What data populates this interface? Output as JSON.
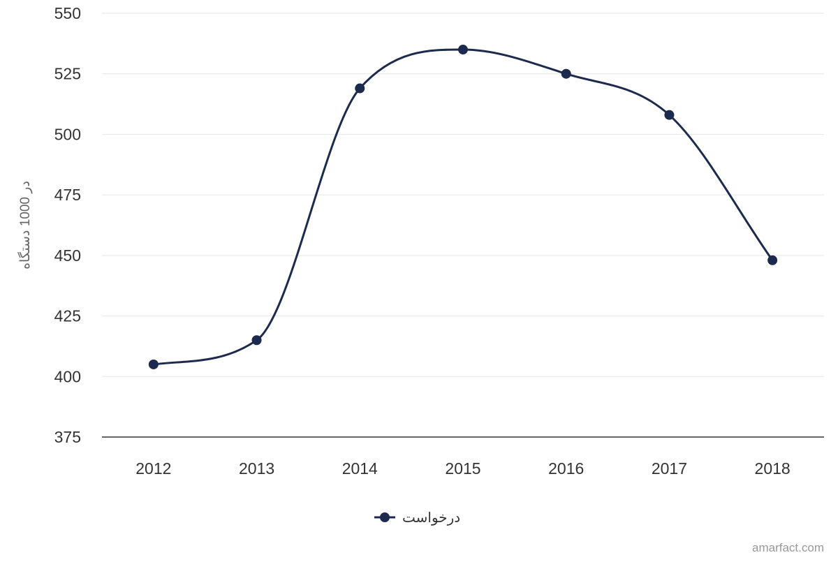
{
  "chart_data": {
    "type": "line",
    "x": [
      "2012",
      "2013",
      "2014",
      "2015",
      "2016",
      "2017",
      "2018"
    ],
    "series": [
      {
        "name": "درخواست",
        "values": [
          405,
          415,
          519,
          535,
          525,
          508,
          448
        ],
        "color": "#1c2a4d"
      }
    ],
    "ylabel": "در 1000 دستگاه",
    "ylim": [
      375,
      550
    ],
    "yticks": [
      375,
      400,
      425,
      450,
      475,
      500,
      525,
      550
    ],
    "grid": true,
    "legend_position": "bottom-center",
    "smooth": true
  },
  "credit": "amarfact.com"
}
